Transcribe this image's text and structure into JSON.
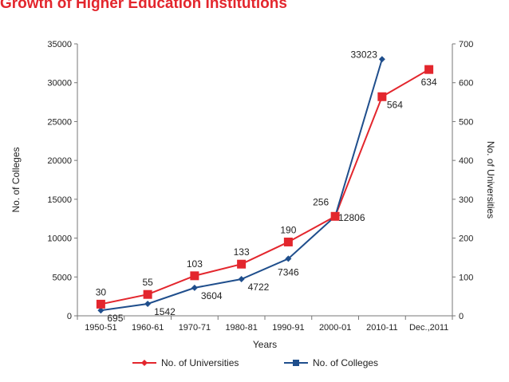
{
  "title": "Growth of Higher Education Institutions",
  "colors": {
    "universities": "#e3262d",
    "colleges": "#1f4e8c",
    "title": "#e3262d"
  },
  "chart_data": {
    "type": "line",
    "title": "Growth of Higher Education Institutions",
    "xlabel": "Years",
    "ylabel_left": "No. of Colleges",
    "ylabel_right": "No. of Universities",
    "categories": [
      "1950-51",
      "1960-61",
      "1970-71",
      "1980-81",
      "1990-91",
      "2000-01",
      "2010-11",
      "Dec.,2011"
    ],
    "y_left": {
      "lim": [
        0,
        35000
      ],
      "ticks": [
        0,
        5000,
        10000,
        15000,
        20000,
        25000,
        30000,
        35000
      ]
    },
    "y_right": {
      "lim": [
        0,
        700
      ],
      "ticks": [
        0,
        100,
        200,
        300,
        400,
        500,
        600,
        700
      ]
    },
    "grid": false,
    "legend_position": "bottom",
    "series": [
      {
        "name": "No. of Universities",
        "axis": "right",
        "marker": "square",
        "values": [
          30,
          55,
          103,
          133,
          190,
          256,
          564,
          634
        ]
      },
      {
        "name": "No. of Colleges",
        "axis": "left",
        "marker": "diamond",
        "values": [
          695,
          1542,
          3604,
          4722,
          7346,
          12806,
          33023,
          null
        ]
      }
    ]
  }
}
